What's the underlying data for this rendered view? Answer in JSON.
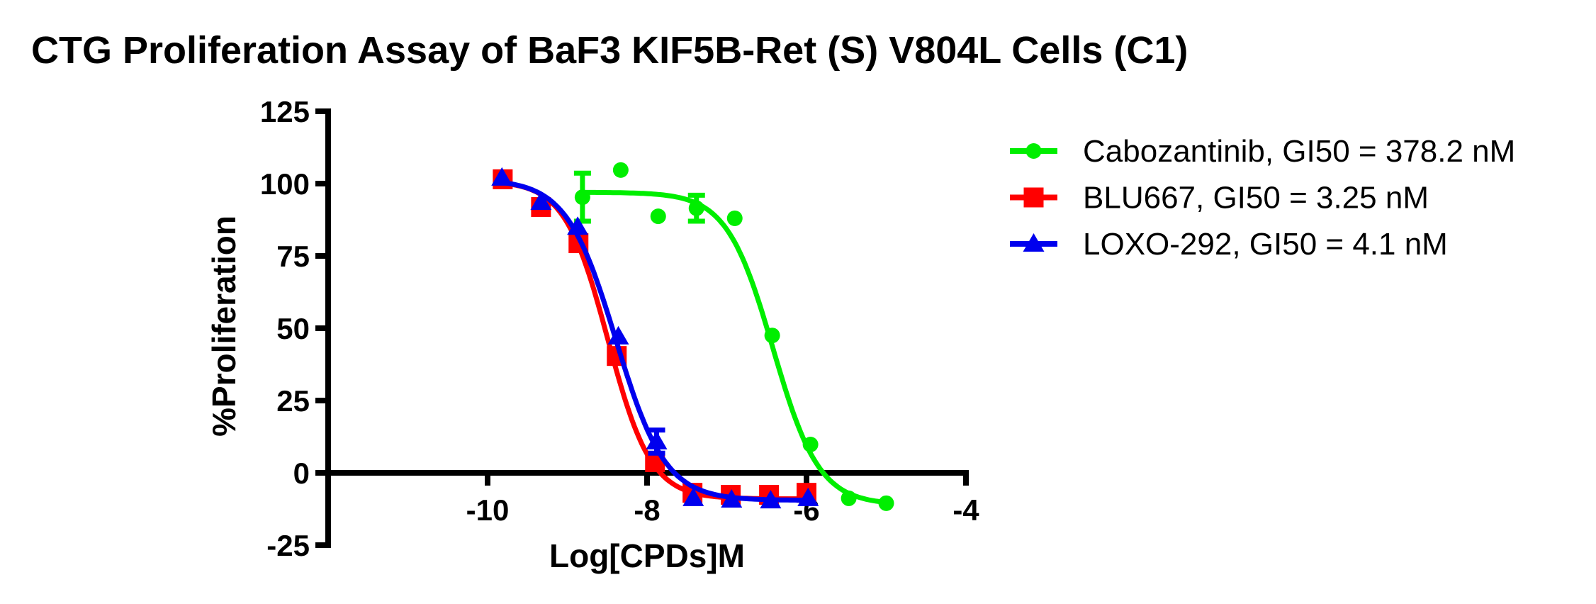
{
  "title": "CTG Proliferation Assay of BaF3 KIF5B-Ret (S) V804L Cells (C1)",
  "chart_data": {
    "type": "scatter",
    "title": "CTG Proliferation Assay of BaF3 KIF5B-Ret (S) V804L Cells (C1)",
    "xlabel": "Log[CPDs]M",
    "ylabel": "%Proliferation",
    "xlim": [
      -12,
      -4
    ],
    "ylim": [
      -25,
      125
    ],
    "x_ticks": [
      -10,
      -8,
      -6,
      -4
    ],
    "y_ticks": [
      125,
      100,
      75,
      50,
      25,
      0,
      -25
    ],
    "grid": false,
    "legend_position": "right",
    "axis_color": "#000000",
    "series": [
      {
        "name": "Cabozantinib",
        "legend_label": "Cabozantinib, GI50 = 378.2 nM",
        "gi50": "378.2 nM",
        "color": "#00ee00",
        "marker": "circle",
        "points": [
          {
            "x": -8.81,
            "y": 95.3,
            "err": 8.3
          },
          {
            "x": -8.33,
            "y": 104.7
          },
          {
            "x": -7.86,
            "y": 88.7
          },
          {
            "x": -7.38,
            "y": 91.5,
            "err": 4.5
          },
          {
            "x": -6.9,
            "y": 88.0
          },
          {
            "x": -6.43,
            "y": 47.5
          },
          {
            "x": -5.95,
            "y": 9.8
          },
          {
            "x": -5.47,
            "y": -8.8
          },
          {
            "x": -5.0,
            "y": -10.5
          }
        ],
        "fit": {
          "top": 97,
          "bottom": -11,
          "log_gi50": -6.42,
          "hill": 1.5
        }
      },
      {
        "name": "BLU667",
        "legend_label": "BLU667, GI50 = 3.25 nM",
        "gi50": "3.25 nM",
        "color": "#ff0000",
        "marker": "square",
        "points": [
          {
            "x": -9.81,
            "y": 101.5
          },
          {
            "x": -9.33,
            "y": 91.9
          },
          {
            "x": -8.86,
            "y": 79.4
          },
          {
            "x": -8.38,
            "y": 40.4
          },
          {
            "x": -7.9,
            "y": 3.7,
            "err": 2.5
          },
          {
            "x": -7.43,
            "y": -6.9
          },
          {
            "x": -6.95,
            "y": -7.6
          },
          {
            "x": -6.47,
            "y": -7.6
          },
          {
            "x": -6.0,
            "y": -6.9
          }
        ],
        "fit": {
          "top": 101,
          "bottom": -9,
          "log_gi50": -8.49,
          "hill": 1.6
        }
      },
      {
        "name": "LOXO-292",
        "legend_label": "LOXO-292, GI50 = 4.1 nM",
        "gi50": "4.1 nM",
        "color": "#0000ee",
        "marker": "triangle",
        "points": [
          {
            "x": -9.82,
            "y": 102.0
          },
          {
            "x": -9.33,
            "y": 93.6
          },
          {
            "x": -8.87,
            "y": 85.0
          },
          {
            "x": -8.36,
            "y": 47.1
          },
          {
            "x": -7.88,
            "y": 10.8,
            "err": 4
          },
          {
            "x": -7.42,
            "y": -8.8
          },
          {
            "x": -6.94,
            "y": -9.3
          },
          {
            "x": -6.45,
            "y": -9.6
          },
          {
            "x": -5.98,
            "y": -8.8
          }
        ],
        "fit": {
          "top": 101.5,
          "bottom": -9.5,
          "log_gi50": -8.39,
          "hill": 1.4
        }
      }
    ]
  }
}
